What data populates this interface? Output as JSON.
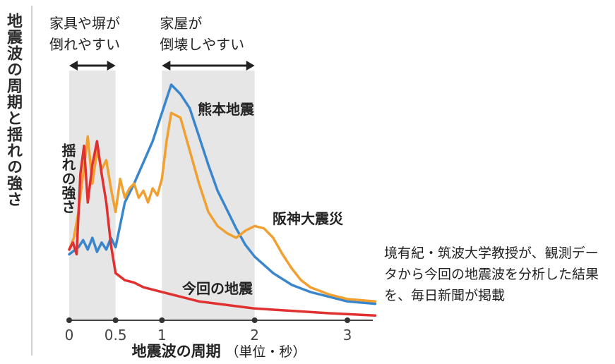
{
  "title": "地震波の周期と揺れの強さ",
  "caption": "境有紀・筑波大学教授が、観測データから今回の地震波を分析した結果を、毎日新聞が掲載",
  "chart_data": {
    "type": "line",
    "xlabel_main": "地震波の周期",
    "xlabel_unit": "（単位・秒）",
    "ylabel": "揺れの強さ",
    "xlim": [
      0,
      3.3
    ],
    "ylim": [
      0,
      1
    ],
    "x_ticks": [
      "0",
      "0.5",
      "1",
      "2",
      "3"
    ],
    "x_tick_values": [
      0,
      0.5,
      1,
      2,
      3
    ],
    "bands": [
      {
        "range": [
          0,
          0.5
        ],
        "label_line1": "家具や塀が",
        "label_line2": "倒れやすい"
      },
      {
        "range": [
          1,
          2
        ],
        "label_line1": "家屋が",
        "label_line2": "倒壊しやすい"
      }
    ],
    "series": [
      {
        "name": "熊本地震",
        "color": "#3a86cc",
        "x": [
          0,
          0.1,
          0.15,
          0.2,
          0.25,
          0.3,
          0.35,
          0.4,
          0.45,
          0.5,
          0.6,
          0.7,
          0.8,
          0.9,
          1.0,
          1.1,
          1.2,
          1.3,
          1.4,
          1.5,
          1.6,
          1.7,
          1.8,
          1.9,
          2.0,
          2.2,
          2.4,
          2.6,
          2.8,
          3.0,
          3.3
        ],
        "y": [
          0.28,
          0.31,
          0.34,
          0.3,
          0.35,
          0.29,
          0.33,
          0.3,
          0.35,
          0.31,
          0.5,
          0.58,
          0.67,
          0.76,
          0.88,
          1.0,
          0.96,
          0.9,
          0.78,
          0.66,
          0.55,
          0.47,
          0.39,
          0.32,
          0.27,
          0.2,
          0.15,
          0.12,
          0.1,
          0.08,
          0.07
        ]
      },
      {
        "name": "阪神大震災",
        "color": "#f0a030",
        "x": [
          0,
          0.05,
          0.1,
          0.15,
          0.2,
          0.25,
          0.3,
          0.35,
          0.4,
          0.45,
          0.5,
          0.55,
          0.6,
          0.65,
          0.7,
          0.75,
          0.8,
          0.85,
          0.9,
          0.95,
          1.0,
          1.05,
          1.1,
          1.2,
          1.3,
          1.4,
          1.5,
          1.6,
          1.7,
          1.8,
          1.9,
          2.0,
          2.1,
          2.2,
          2.3,
          2.4,
          2.5,
          2.6,
          2.8,
          3.0,
          3.3
        ],
        "y": [
          0.3,
          0.35,
          0.46,
          0.62,
          0.78,
          0.58,
          0.72,
          0.64,
          0.68,
          0.56,
          0.46,
          0.6,
          0.52,
          0.56,
          0.58,
          0.52,
          0.55,
          0.5,
          0.56,
          0.53,
          0.6,
          0.76,
          0.88,
          0.86,
          0.72,
          0.58,
          0.46,
          0.4,
          0.37,
          0.35,
          0.38,
          0.4,
          0.39,
          0.35,
          0.28,
          0.22,
          0.17,
          0.14,
          0.11,
          0.09,
          0.08
        ]
      },
      {
        "name": "今回の地震",
        "color": "#e03030",
        "x": [
          0,
          0.04,
          0.08,
          0.12,
          0.16,
          0.2,
          0.25,
          0.3,
          0.35,
          0.4,
          0.45,
          0.5,
          0.6,
          0.7,
          0.8,
          0.9,
          1.0,
          1.2,
          1.4,
          1.6,
          1.8,
          2.0,
          2.4,
          2.8,
          3.3
        ],
        "y": [
          0.3,
          0.33,
          0.28,
          0.62,
          0.74,
          0.5,
          0.66,
          0.76,
          0.62,
          0.5,
          0.32,
          0.2,
          0.17,
          0.16,
          0.14,
          0.13,
          0.12,
          0.1,
          0.08,
          0.07,
          0.06,
          0.05,
          0.04,
          0.03,
          0.02
        ]
      }
    ]
  }
}
